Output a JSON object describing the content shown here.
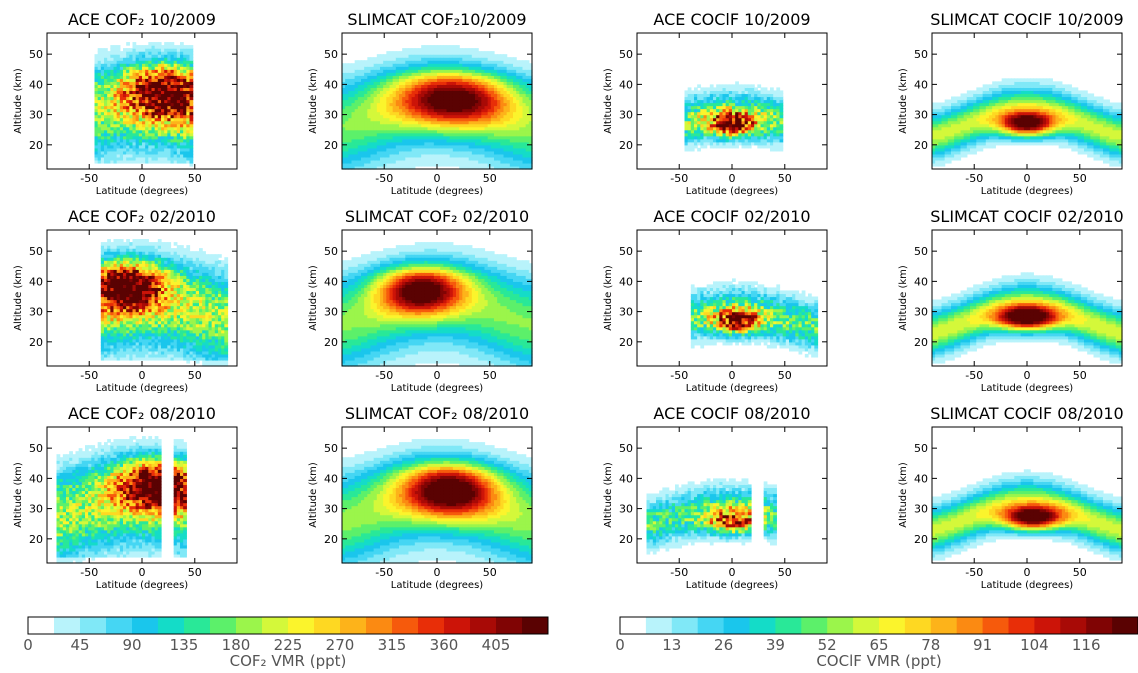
{
  "colors": {
    "cof2_scale": [
      "#ffffff",
      "#b8f3fb",
      "#80e8f7",
      "#45d6f3",
      "#1ac6ec",
      "#14dcc8",
      "#29e898",
      "#5cf06a",
      "#9bf54b",
      "#d4f83a",
      "#fbf42c",
      "#fed822",
      "#fdb31a",
      "#fb8a12",
      "#f65a0c",
      "#e82e08",
      "#cc1408",
      "#a80a06",
      "#800404",
      "#5a0202"
    ],
    "cocif_scale": [
      "#ffffff",
      "#b8f3fb",
      "#80e8f7",
      "#45d6f3",
      "#1ac6ec",
      "#14dcc8",
      "#29e898",
      "#5cf06a",
      "#9bf54b",
      "#d4f83a",
      "#fbf42c",
      "#fed822",
      "#fdb31a",
      "#fb8a12",
      "#f65a0c",
      "#e82e08",
      "#cc1408",
      "#a80a06",
      "#800404",
      "#5a0202"
    ]
  },
  "chart_data": [
    {
      "type": "heatmap",
      "title": "ACE COF₂ 10/2009",
      "xlabel": "Latitude (degrees)",
      "ylabel": "Altitude (km)",
      "xlim": [
        -90,
        90
      ],
      "ylim": [
        12,
        57
      ],
      "xticks": [
        -50,
        0,
        50
      ],
      "yticks": [
        20,
        30,
        40,
        50
      ],
      "coverage": [
        -45,
        48
      ],
      "peak": {
        "lat": 25,
        "alt": 38,
        "value": 370
      },
      "lat_width": 40,
      "alt_width": 10,
      "band": {
        "shift": 0,
        "bulge": 4
      },
      "noise": 0.7
    },
    {
      "type": "heatmap",
      "title": "SLIMCAT COF₂10/2009",
      "xlabel": "Latitude (degrees)",
      "ylabel": "Altitude (km)",
      "xlim": [
        -90,
        90
      ],
      "ylim": [
        12,
        57
      ],
      "xticks": [
        -50,
        0,
        50
      ],
      "yticks": [
        20,
        30,
        40,
        50
      ],
      "coverage": [
        -90,
        90
      ],
      "peak": {
        "lat": 15,
        "alt": 35,
        "value": 340
      },
      "lat_width": 55,
      "alt_width": 9,
      "band": {
        "shift": 0,
        "bulge": 5
      },
      "noise": 0
    },
    {
      "type": "heatmap",
      "title": "ACE COClF 10/2009",
      "xlabel": "Latitude (degrees)",
      "ylabel": "Altitude (km)",
      "xlim": [
        -90,
        90
      ],
      "ylim": [
        12,
        57
      ],
      "xticks": [
        -50,
        0,
        50
      ],
      "yticks": [
        20,
        30,
        40,
        50
      ],
      "coverage": [
        -45,
        48
      ],
      "peak": {
        "lat": 0,
        "alt": 27,
        "value": 100
      },
      "lat_width": 22,
      "alt_width": 4,
      "band": {
        "shift": 0,
        "bulge": 3
      },
      "noise": 0.8
    },
    {
      "type": "heatmap",
      "title": "SLIMCAT COClF 10/2009",
      "xlabel": "Latitude (degrees)",
      "ylabel": "Altitude (km)",
      "xlim": [
        -90,
        90
      ],
      "ylim": [
        12,
        57
      ],
      "xticks": [
        -50,
        0,
        50
      ],
      "yticks": [
        20,
        30,
        40,
        50
      ],
      "coverage": [
        -90,
        90
      ],
      "peak": {
        "lat": 0,
        "alt": 27,
        "value": 118
      },
      "lat_width": 26,
      "alt_width": 4,
      "band": {
        "shift": 0,
        "bulge": 5
      },
      "noise": 0
    },
    {
      "type": "heatmap",
      "title": "ACE COF₂ 02/2010",
      "xlabel": "Latitude (degrees)",
      "ylabel": "Altitude (km)",
      "xlim": [
        -90,
        90
      ],
      "ylim": [
        12,
        57
      ],
      "xticks": [
        -50,
        0,
        50
      ],
      "yticks": [
        20,
        30,
        40,
        50
      ],
      "coverage": [
        -40,
        82
      ],
      "peak": {
        "lat": -15,
        "alt": 39,
        "value": 390
      },
      "lat_width": 35,
      "alt_width": 9,
      "band": {
        "shift": 0,
        "bulge": 4
      },
      "noise": 0.6
    },
    {
      "type": "heatmap",
      "title": "SLIMCAT COF₂ 02/2010",
      "xlabel": "Latitude (degrees)",
      "ylabel": "Altitude (km)",
      "xlim": [
        -90,
        90
      ],
      "ylim": [
        12,
        57
      ],
      "xticks": [
        -50,
        0,
        50
      ],
      "yticks": [
        20,
        30,
        40,
        50
      ],
      "coverage": [
        -90,
        90
      ],
      "peak": {
        "lat": -15,
        "alt": 37,
        "value": 350
      },
      "lat_width": 40,
      "alt_width": 8,
      "band": {
        "shift": 0,
        "bulge": 5
      },
      "noise": 0
    },
    {
      "type": "heatmap",
      "title": "ACE COClF 02/2010",
      "xlabel": "Latitude (degrees)",
      "ylabel": "Altitude (km)",
      "xlim": [
        -90,
        90
      ],
      "ylim": [
        12,
        57
      ],
      "xticks": [
        -50,
        0,
        50
      ],
      "yticks": [
        20,
        30,
        40,
        50
      ],
      "coverage": [
        -40,
        82
      ],
      "peak": {
        "lat": 5,
        "alt": 27,
        "value": 95
      },
      "lat_width": 22,
      "alt_width": 4,
      "band": {
        "shift": 0,
        "bulge": 3
      },
      "noise": 0.8
    },
    {
      "type": "heatmap",
      "title": "SLIMCAT COClF 02/2010",
      "xlabel": "Latitude (degrees)",
      "ylabel": "Altitude (km)",
      "xlim": [
        -90,
        90
      ],
      "ylim": [
        12,
        57
      ],
      "xticks": [
        -50,
        0,
        50
      ],
      "yticks": [
        20,
        30,
        40,
        50
      ],
      "coverage": [
        -90,
        90
      ],
      "peak": {
        "lat": 0,
        "alt": 28,
        "value": 122
      },
      "lat_width": 28,
      "alt_width": 4,
      "band": {
        "shift": 0,
        "bulge": 5
      },
      "noise": 0
    },
    {
      "type": "heatmap",
      "title": "ACE COF₂ 08/2010",
      "xlabel": "Latitude (degrees)",
      "ylabel": "Altitude (km)",
      "xlim": [
        -90,
        90
      ],
      "ylim": [
        12,
        57
      ],
      "xticks": [
        -50,
        0,
        50
      ],
      "yticks": [
        20,
        30,
        40,
        50
      ],
      "coverage": [
        -82,
        17
      ],
      "coverage2": [
        30,
        42
      ],
      "peak": {
        "lat": 15,
        "alt": 38,
        "value": 380
      },
      "lat_width": 38,
      "alt_width": 9,
      "band": {
        "shift": 0,
        "bulge": 4
      },
      "noise": 0.6
    },
    {
      "type": "heatmap",
      "title": "SLIMCAT COF₂ 08/2010",
      "xlabel": "Latitude (degrees)",
      "ylabel": "Altitude (km)",
      "xlim": [
        -90,
        90
      ],
      "ylim": [
        12,
        57
      ],
      "xticks": [
        -50,
        0,
        50
      ],
      "yticks": [
        20,
        30,
        40,
        50
      ],
      "coverage": [
        -90,
        90
      ],
      "peak": {
        "lat": 12,
        "alt": 36,
        "value": 360
      },
      "lat_width": 45,
      "alt_width": 9,
      "band": {
        "shift": 0,
        "bulge": 5
      },
      "noise": 0
    },
    {
      "type": "heatmap",
      "title": "ACE COClF 08/2010",
      "xlabel": "Latitude (degrees)",
      "ylabel": "Altitude (km)",
      "xlim": [
        -90,
        90
      ],
      "ylim": [
        12,
        57
      ],
      "xticks": [
        -50,
        0,
        50
      ],
      "yticks": [
        20,
        30,
        40,
        50
      ],
      "coverage": [
        -82,
        17
      ],
      "coverage2": [
        30,
        42
      ],
      "peak": {
        "lat": 0,
        "alt": 26,
        "value": 88
      },
      "lat_width": 25,
      "alt_width": 4,
      "band": {
        "shift": 0,
        "bulge": 3
      },
      "noise": 0.8
    },
    {
      "type": "heatmap",
      "title": "SLIMCAT COClF 08/2010",
      "xlabel": "Latitude (degrees)",
      "ylabel": "Altitude (km)",
      "xlim": [
        -90,
        90
      ],
      "ylim": [
        12,
        57
      ],
      "xticks": [
        -50,
        0,
        50
      ],
      "yticks": [
        20,
        30,
        40,
        50
      ],
      "coverage": [
        -90,
        90
      ],
      "peak": {
        "lat": 5,
        "alt": 27,
        "value": 120
      },
      "lat_width": 28,
      "alt_width": 4,
      "band": {
        "shift": 0,
        "bulge": 5
      },
      "noise": 0
    }
  ],
  "colorbars": [
    {
      "label": "COF₂ VMR (ppt)",
      "ticks": [
        "0",
        "45",
        "90",
        "135",
        "180",
        "225",
        "270",
        "315",
        "360",
        "405"
      ],
      "min": 0,
      "max": 450,
      "levels": 20
    },
    {
      "label": "COClF VMR (ppt)",
      "ticks": [
        "0",
        "13",
        "26",
        "39",
        "52",
        "65",
        "78",
        "91",
        "104",
        "116"
      ],
      "min": 0,
      "max": 130,
      "levels": 20
    }
  ]
}
